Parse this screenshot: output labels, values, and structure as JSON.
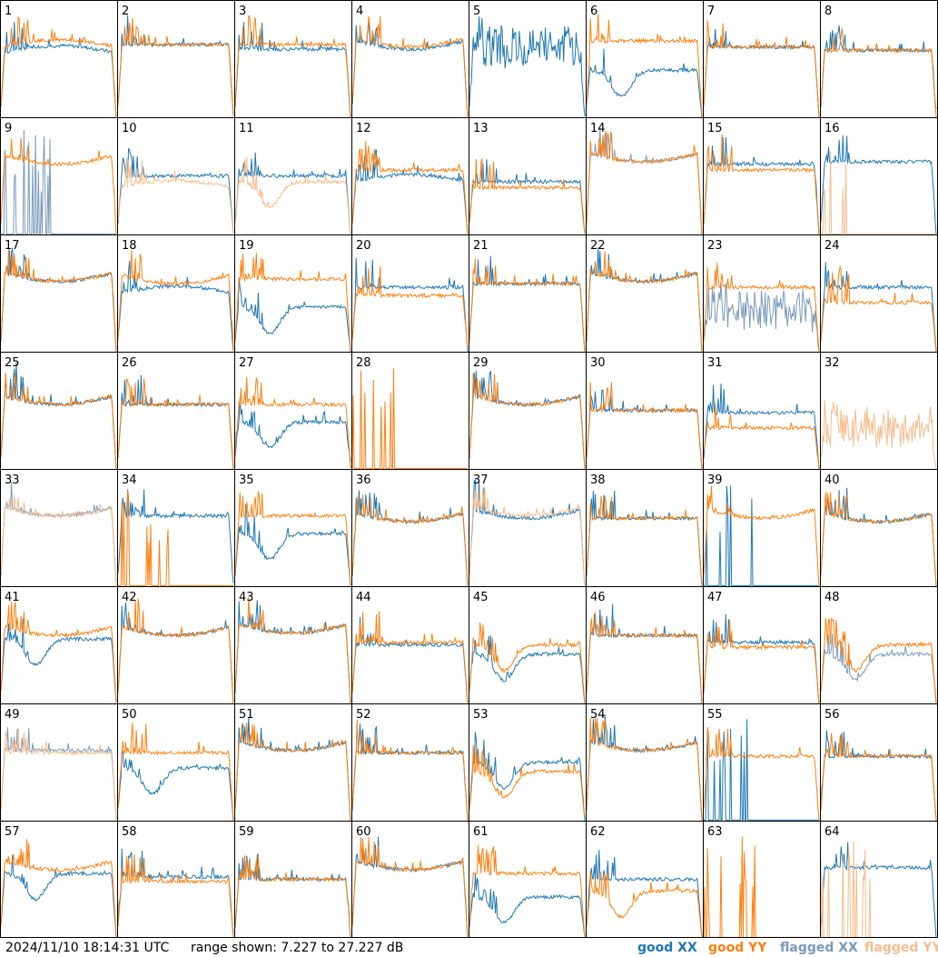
{
  "timestamp": "2024/11/10 18:14:31 UTC",
  "range_text": "range shown: 7.227 to 27.227 dB",
  "legend": {
    "good_xx": "good XX",
    "good_yy": "good YY",
    "flagged_xx": "flagged XX",
    "flagged_yy": "flagged YY"
  },
  "colors": {
    "good_xx": "#1f77b4",
    "good_yy": "#ff7f0e",
    "flagged_xx": "#7a9abb",
    "flagged_yy": "#f6bc8c",
    "border": "#000000",
    "label": "#000000"
  },
  "chart_data": {
    "type": "line",
    "layout": "8x8 small multiples",
    "ylim": [
      7.227,
      27.227
    ],
    "yunit": "dB",
    "panels": [
      {
        "id": 1,
        "xx": {
          "status": "good",
          "shape": "hump",
          "level": 0.55
        },
        "yy": {
          "status": "good",
          "shape": "hump",
          "level": 0.6
        }
      },
      {
        "id": 2,
        "xx": {
          "status": "good",
          "shape": "flat",
          "level": 0.62
        },
        "yy": {
          "status": "good",
          "shape": "flat",
          "level": 0.62
        }
      },
      {
        "id": 3,
        "xx": {
          "status": "good",
          "shape": "flat",
          "level": 0.58
        },
        "yy": {
          "status": "good",
          "shape": "flat",
          "level": 0.62
        }
      },
      {
        "id": 4,
        "xx": {
          "status": "good",
          "shape": "bowl",
          "level": 0.58
        },
        "yy": {
          "status": "good",
          "shape": "bowl",
          "level": 0.6
        }
      },
      {
        "id": 5,
        "xx": {
          "status": "good",
          "shape": "noisy",
          "level": 0.6
        },
        "yy": {
          "status": "good",
          "shape": "absent",
          "level": 0
        }
      },
      {
        "id": 6,
        "xx": {
          "status": "good",
          "shape": "dip",
          "level": 0.4
        },
        "yy": {
          "status": "good",
          "shape": "flat",
          "level": 0.65
        }
      },
      {
        "id": 7,
        "xx": {
          "status": "good",
          "shape": "flat",
          "level": 0.6
        },
        "yy": {
          "status": "good",
          "shape": "flat",
          "level": 0.6
        }
      },
      {
        "id": 8,
        "xx": {
          "status": "good",
          "shape": "flat",
          "level": 0.57
        },
        "yy": {
          "status": "good",
          "shape": "flat",
          "level": 0.57
        }
      },
      {
        "id": 9,
        "xx": {
          "status": "flagged",
          "shape": "spikes",
          "level": 0.1
        },
        "yy": {
          "status": "good",
          "shape": "bowl",
          "level": 0.6
        }
      },
      {
        "id": 10,
        "xx": {
          "status": "good",
          "shape": "flat",
          "level": 0.5
        },
        "yy": {
          "status": "flagged",
          "shape": "hump",
          "level": 0.4
        }
      },
      {
        "id": 11,
        "xx": {
          "status": "good",
          "shape": "flat",
          "level": 0.5
        },
        "yy": {
          "status": "flagged",
          "shape": "dip",
          "level": 0.45
        }
      },
      {
        "id": 12,
        "xx": {
          "status": "good",
          "shape": "hump",
          "level": 0.45
        },
        "yy": {
          "status": "good",
          "shape": "flat",
          "level": 0.55
        }
      },
      {
        "id": 13,
        "xx": {
          "status": "good",
          "shape": "flat",
          "level": 0.45
        },
        "yy": {
          "status": "good",
          "shape": "flat",
          "level": 0.4
        }
      },
      {
        "id": 14,
        "xx": {
          "status": "flagged",
          "shape": "bowl",
          "level": 0.62
        },
        "yy": {
          "status": "good",
          "shape": "bowl",
          "level": 0.62
        }
      },
      {
        "id": 15,
        "xx": {
          "status": "good",
          "shape": "flat",
          "level": 0.6
        },
        "yy": {
          "status": "good",
          "shape": "flat",
          "level": 0.55
        }
      },
      {
        "id": 16,
        "xx": {
          "status": "good",
          "shape": "flat",
          "level": 0.62
        },
        "yy": {
          "status": "flagged",
          "shape": "spikes",
          "level": 0.05
        }
      },
      {
        "id": 17,
        "xx": {
          "status": "good",
          "shape": "bowl",
          "level": 0.6
        },
        "yy": {
          "status": "good",
          "shape": "bowl",
          "level": 0.6
        }
      },
      {
        "id": 18,
        "xx": {
          "status": "good",
          "shape": "hump",
          "level": 0.5
        },
        "yy": {
          "status": "good",
          "shape": "bowl",
          "level": 0.58
        }
      },
      {
        "id": 19,
        "xx": {
          "status": "good",
          "shape": "dip",
          "level": 0.38
        },
        "yy": {
          "status": "good",
          "shape": "flat",
          "level": 0.62
        }
      },
      {
        "id": 20,
        "xx": {
          "status": "good",
          "shape": "flat",
          "level": 0.55
        },
        "yy": {
          "status": "good",
          "shape": "flat",
          "level": 0.48
        }
      },
      {
        "id": 21,
        "xx": {
          "status": "good",
          "shape": "flat",
          "level": 0.58
        },
        "yy": {
          "status": "good",
          "shape": "flat",
          "level": 0.58
        }
      },
      {
        "id": 22,
        "xx": {
          "status": "good",
          "shape": "bowl",
          "level": 0.6
        },
        "yy": {
          "status": "good",
          "shape": "bowl",
          "level": 0.6
        }
      },
      {
        "id": 23,
        "xx": {
          "status": "flagged",
          "shape": "noisy",
          "level": 0.35
        },
        "yy": {
          "status": "good",
          "shape": "flat",
          "level": 0.55
        }
      },
      {
        "id": 24,
        "xx": {
          "status": "good",
          "shape": "flat",
          "level": 0.55
        },
        "yy": {
          "status": "good",
          "shape": "flat",
          "level": 0.42
        }
      },
      {
        "id": 25,
        "xx": {
          "status": "good",
          "shape": "bowl",
          "level": 0.55
        },
        "yy": {
          "status": "good",
          "shape": "bowl",
          "level": 0.55
        }
      },
      {
        "id": 26,
        "xx": {
          "status": "good",
          "shape": "flat",
          "level": 0.55
        },
        "yy": {
          "status": "good",
          "shape": "flat",
          "level": 0.55
        }
      },
      {
        "id": 27,
        "xx": {
          "status": "good",
          "shape": "dip",
          "level": 0.4
        },
        "yy": {
          "status": "good",
          "shape": "flat",
          "level": 0.55
        }
      },
      {
        "id": 28,
        "xx": {
          "status": "good",
          "shape": "absent",
          "level": 0
        },
        "yy": {
          "status": "good",
          "shape": "spikes",
          "level": 0.05
        }
      },
      {
        "id": 29,
        "xx": {
          "status": "good",
          "shape": "bowl",
          "level": 0.55
        },
        "yy": {
          "status": "good",
          "shape": "bowl",
          "level": 0.55
        }
      },
      {
        "id": 30,
        "xx": {
          "status": "good",
          "shape": "flat",
          "level": 0.5
        },
        "yy": {
          "status": "good",
          "shape": "flat",
          "level": 0.5
        }
      },
      {
        "id": 31,
        "xx": {
          "status": "good",
          "shape": "flat",
          "level": 0.48
        },
        "yy": {
          "status": "good",
          "shape": "flat",
          "level": 0.35
        }
      },
      {
        "id": 32,
        "xx": {
          "status": "good",
          "shape": "absent",
          "level": 0
        },
        "yy": {
          "status": "flagged",
          "shape": "noisy",
          "level": 0.35
        }
      },
      {
        "id": 33,
        "xx": {
          "status": "flagged",
          "shape": "bowl",
          "level": 0.6
        },
        "yy": {
          "status": "flagged",
          "shape": "bowl",
          "level": 0.6
        }
      },
      {
        "id": 34,
        "xx": {
          "status": "good",
          "shape": "flat",
          "level": 0.6
        },
        "yy": {
          "status": "good",
          "shape": "spikes",
          "level": 0.05
        }
      },
      {
        "id": 35,
        "xx": {
          "status": "good",
          "shape": "dip",
          "level": 0.45
        },
        "yy": {
          "status": "good",
          "shape": "flat",
          "level": 0.6
        }
      },
      {
        "id": 36,
        "xx": {
          "status": "good",
          "shape": "bowl",
          "level": 0.55
        },
        "yy": {
          "status": "good",
          "shape": "bowl",
          "level": 0.55
        }
      },
      {
        "id": 37,
        "xx": {
          "status": "good",
          "shape": "bowl",
          "level": 0.58
        },
        "yy": {
          "status": "flagged",
          "shape": "bowl",
          "level": 0.6
        }
      },
      {
        "id": 38,
        "xx": {
          "status": "good",
          "shape": "flat",
          "level": 0.58
        },
        "yy": {
          "status": "good",
          "shape": "flat",
          "level": 0.58
        }
      },
      {
        "id": 39,
        "xx": {
          "status": "good",
          "shape": "spikes",
          "level": 0.05
        },
        "yy": {
          "status": "good",
          "shape": "bowl",
          "level": 0.58
        }
      },
      {
        "id": 40,
        "xx": {
          "status": "good",
          "shape": "bowl",
          "level": 0.55
        },
        "yy": {
          "status": "good",
          "shape": "bowl",
          "level": 0.55
        }
      },
      {
        "id": 41,
        "xx": {
          "status": "good",
          "shape": "dip",
          "level": 0.55
        },
        "yy": {
          "status": "good",
          "shape": "bowl",
          "level": 0.58
        }
      },
      {
        "id": 42,
        "xx": {
          "status": "good",
          "shape": "bowl",
          "level": 0.58
        },
        "yy": {
          "status": "good",
          "shape": "bowl",
          "level": 0.58
        }
      },
      {
        "id": 43,
        "xx": {
          "status": "good",
          "shape": "bowl",
          "level": 0.6
        },
        "yy": {
          "status": "good",
          "shape": "bowl",
          "level": 0.6
        }
      },
      {
        "id": 44,
        "xx": {
          "status": "good",
          "shape": "flat",
          "level": 0.5
        },
        "yy": {
          "status": "good",
          "shape": "flat",
          "level": 0.52
        }
      },
      {
        "id": 45,
        "xx": {
          "status": "good",
          "shape": "dip",
          "level": 0.42
        },
        "yy": {
          "status": "good",
          "shape": "dip",
          "level": 0.5
        }
      },
      {
        "id": 46,
        "xx": {
          "status": "good",
          "shape": "flat",
          "level": 0.58
        },
        "yy": {
          "status": "good",
          "shape": "flat",
          "level": 0.58
        }
      },
      {
        "id": 47,
        "xx": {
          "status": "good",
          "shape": "flat",
          "level": 0.52
        },
        "yy": {
          "status": "good",
          "shape": "flat",
          "level": 0.48
        }
      },
      {
        "id": 48,
        "xx": {
          "status": "flagged",
          "shape": "dip",
          "level": 0.42
        },
        "yy": {
          "status": "good",
          "shape": "dip",
          "level": 0.5
        }
      },
      {
        "id": 49,
        "xx": {
          "status": "flagged",
          "shape": "flat",
          "level": 0.6
        },
        "yy": {
          "status": "flagged",
          "shape": "flat",
          "level": 0.58
        }
      },
      {
        "id": 50,
        "xx": {
          "status": "good",
          "shape": "dip",
          "level": 0.45
        },
        "yy": {
          "status": "good",
          "shape": "flat",
          "level": 0.58
        }
      },
      {
        "id": 51,
        "xx": {
          "status": "good",
          "shape": "bowl",
          "level": 0.6
        },
        "yy": {
          "status": "good",
          "shape": "bowl",
          "level": 0.6
        }
      },
      {
        "id": 52,
        "xx": {
          "status": "good",
          "shape": "flat",
          "level": 0.58
        },
        "yy": {
          "status": "good",
          "shape": "flat",
          "level": 0.58
        }
      },
      {
        "id": 53,
        "xx": {
          "status": "good",
          "shape": "dip",
          "level": 0.5
        },
        "yy": {
          "status": "good",
          "shape": "dip",
          "level": 0.42
        }
      },
      {
        "id": 54,
        "xx": {
          "status": "good",
          "shape": "bowl",
          "level": 0.6
        },
        "yy": {
          "status": "good",
          "shape": "bowl",
          "level": 0.6
        }
      },
      {
        "id": 55,
        "xx": {
          "status": "good",
          "shape": "spikes",
          "level": 0.1
        },
        "yy": {
          "status": "good",
          "shape": "flat",
          "level": 0.55
        }
      },
      {
        "id": 56,
        "xx": {
          "status": "good",
          "shape": "flat",
          "level": 0.55
        },
        "yy": {
          "status": "good",
          "shape": "flat",
          "level": 0.55
        }
      },
      {
        "id": 57,
        "xx": {
          "status": "good",
          "shape": "dip",
          "level": 0.55
        },
        "yy": {
          "status": "good",
          "shape": "bowl",
          "level": 0.58
        }
      },
      {
        "id": 58,
        "xx": {
          "status": "good",
          "shape": "flat",
          "level": 0.52
        },
        "yy": {
          "status": "good",
          "shape": "flat",
          "level": 0.48
        }
      },
      {
        "id": 59,
        "xx": {
          "status": "good",
          "shape": "flat",
          "level": 0.5
        },
        "yy": {
          "status": "good",
          "shape": "flat",
          "level": 0.5
        }
      },
      {
        "id": 60,
        "xx": {
          "status": "good",
          "shape": "bowl",
          "level": 0.58
        },
        "yy": {
          "status": "good",
          "shape": "bowl",
          "level": 0.58
        }
      },
      {
        "id": 61,
        "xx": {
          "status": "good",
          "shape": "dip",
          "level": 0.35
        },
        "yy": {
          "status": "good",
          "shape": "flat",
          "level": 0.55
        }
      },
      {
        "id": 62,
        "xx": {
          "status": "good",
          "shape": "flat",
          "level": 0.5
        },
        "yy": {
          "status": "good",
          "shape": "dip",
          "level": 0.4
        }
      },
      {
        "id": 63,
        "xx": {
          "status": "good",
          "shape": "absent",
          "level": 0
        },
        "yy": {
          "status": "good",
          "shape": "spikes",
          "level": 0.05
        }
      },
      {
        "id": 64,
        "xx": {
          "status": "good",
          "shape": "flat",
          "level": 0.6
        },
        "yy": {
          "status": "flagged",
          "shape": "spikes",
          "level": 0.05
        }
      }
    ]
  }
}
